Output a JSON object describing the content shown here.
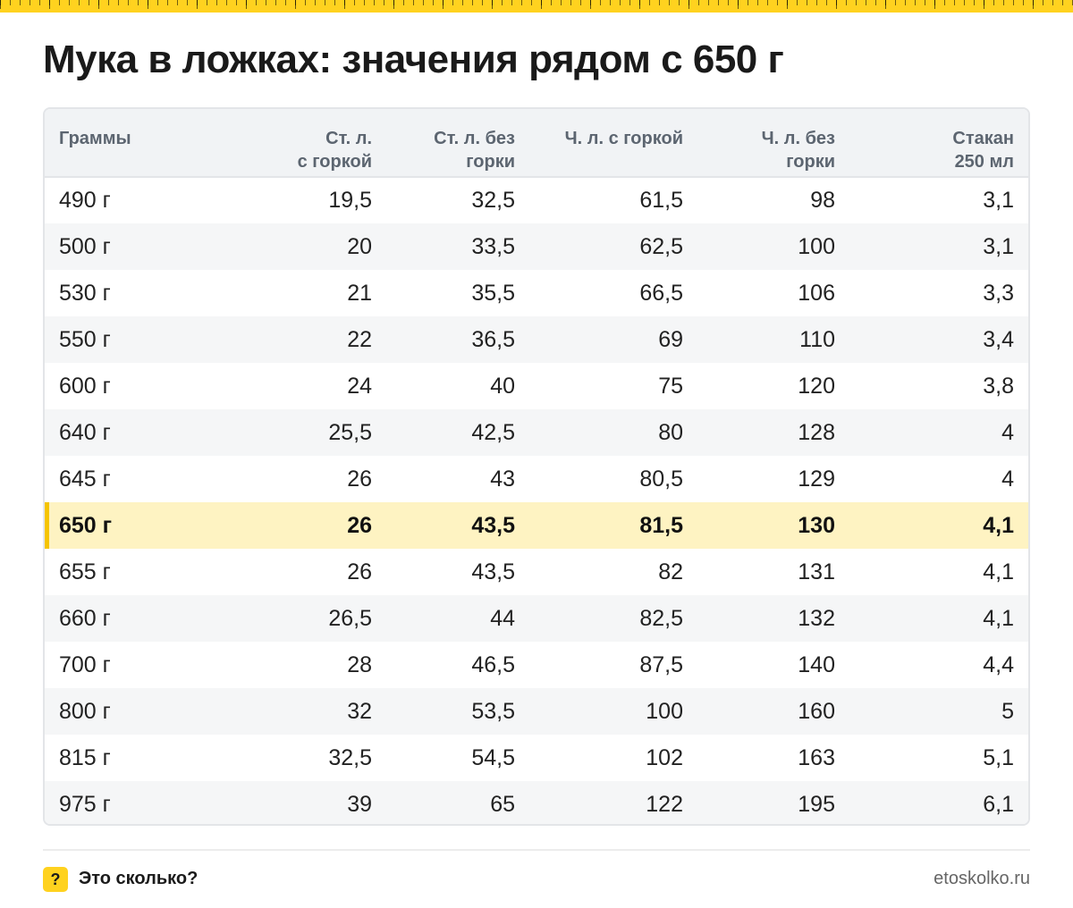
{
  "title": "Мука в ложках: значения рядом с 650 г",
  "table": {
    "headers": [
      [
        "Граммы"
      ],
      [
        "Ст. л.",
        "с горкой"
      ],
      [
        "Ст. л. без",
        "горки"
      ],
      [
        "Ч. л. с горкой"
      ],
      [
        "Ч. л. без",
        "горки"
      ],
      [
        "Стакан",
        "250 мл"
      ]
    ],
    "rows": [
      [
        "490 г",
        "19,5",
        "32,5",
        "61,5",
        "98",
        "3,1"
      ],
      [
        "500 г",
        "20",
        "33,5",
        "62,5",
        "100",
        "3,1"
      ],
      [
        "530 г",
        "21",
        "35,5",
        "66,5",
        "106",
        "3,3"
      ],
      [
        "550 г",
        "22",
        "36,5",
        "69",
        "110",
        "3,4"
      ],
      [
        "600 г",
        "24",
        "40",
        "75",
        "120",
        "3,8"
      ],
      [
        "640 г",
        "25,5",
        "42,5",
        "80",
        "128",
        "4"
      ],
      [
        "645 г",
        "26",
        "43",
        "80,5",
        "129",
        "4"
      ],
      [
        "650 г",
        "26",
        "43,5",
        "81,5",
        "130",
        "4,1"
      ],
      [
        "655 г",
        "26",
        "43,5",
        "82",
        "131",
        "4,1"
      ],
      [
        "660 г",
        "26,5",
        "44",
        "82,5",
        "132",
        "4,1"
      ],
      [
        "700 г",
        "28",
        "46,5",
        "87,5",
        "140",
        "4,4"
      ],
      [
        "800 г",
        "32",
        "53,5",
        "100",
        "160",
        "5"
      ],
      [
        "815 г",
        "32,5",
        "54,5",
        "102",
        "163",
        "5,1"
      ],
      [
        "975 г",
        "39",
        "65",
        "122",
        "195",
        "6,1"
      ]
    ],
    "highlight_row": 7
  },
  "footer": {
    "icon_glyph": "?",
    "brand": "Это сколько?",
    "site": "etoskolko.ru"
  },
  "colors": {
    "accent": "#ffd21f",
    "highlight_bg": "#fef3c2",
    "header_bg": "#f1f3f5"
  }
}
